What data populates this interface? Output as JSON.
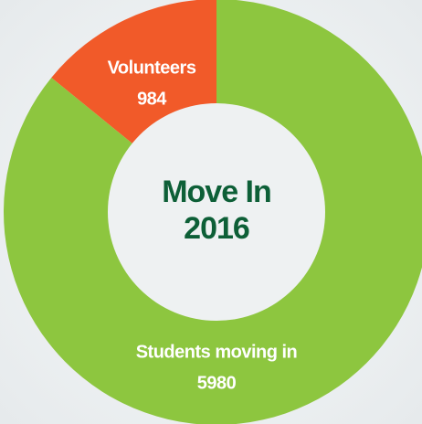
{
  "chart_data": {
    "type": "donut",
    "title": "Move In 2016",
    "categories": [
      "Volunteers",
      "Students moving in"
    ],
    "values": [
      984,
      5980
    ],
    "colors": [
      "#f15a29",
      "#8dc63f"
    ],
    "direction": "counterclockwise"
  }
}
